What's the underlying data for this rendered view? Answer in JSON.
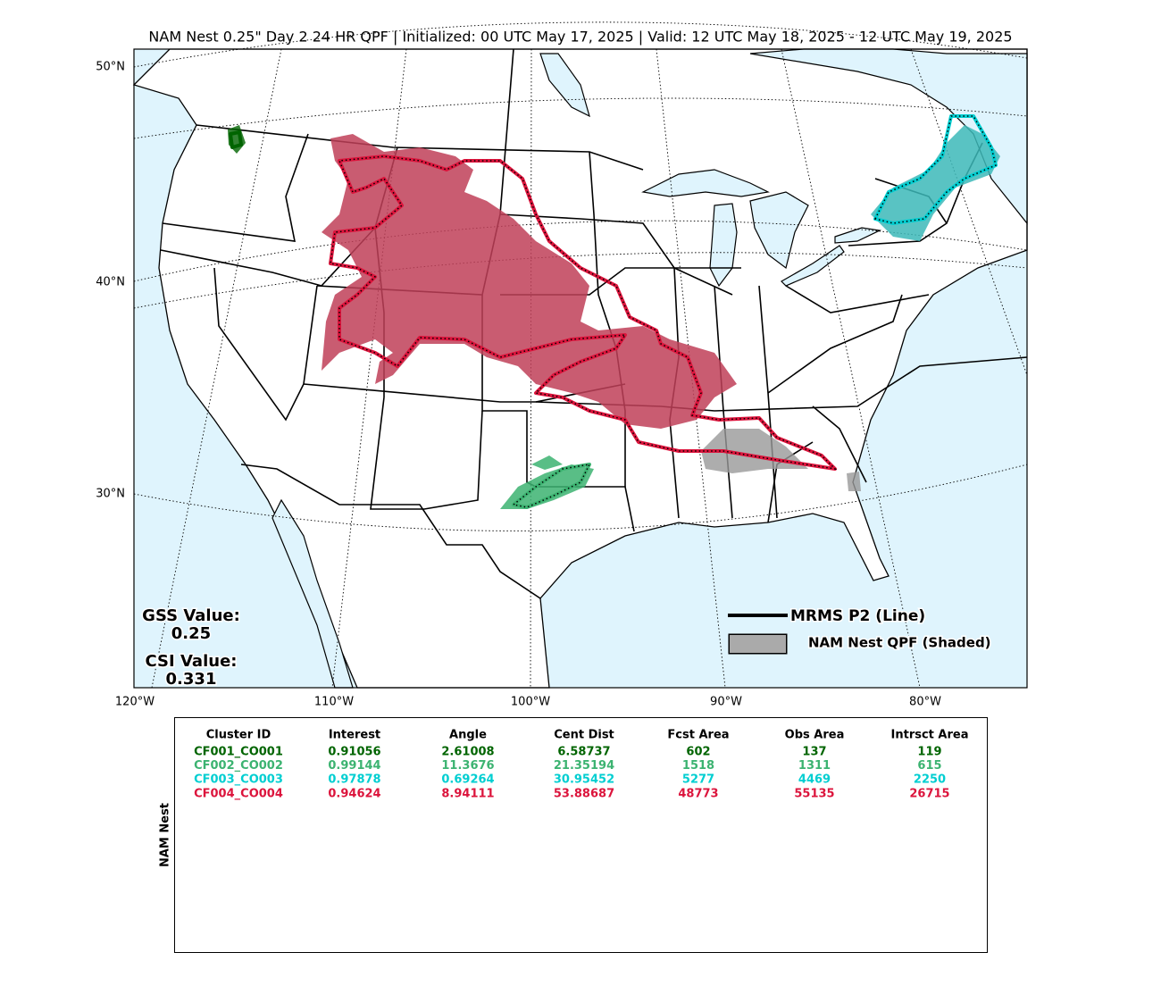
{
  "title": "NAM Nest 0.25\" Day 2 24 HR QPF | Initialized: 00 UTC May 17, 2025 | Valid: 12 UTC May 18, 2025 - 12 UTC May 19, 2025",
  "map": {
    "lat_labels": [
      "50°N",
      "40°N",
      "30°N"
    ],
    "lon_labels": [
      "120°W",
      "110°W",
      "100°W",
      "90°W",
      "80°W"
    ]
  },
  "legend": {
    "line": "MRMS P2 (Line)",
    "shaded": "NAM Nest QPF (Shaded)"
  },
  "scores": {
    "gss_label": "GSS Value:",
    "gss": "0.25",
    "csi_label": "CSI Value:",
    "csi": "0.331"
  },
  "table": {
    "side_label": "NAM Nest",
    "header": [
      "Cluster ID",
      "Interest",
      "Angle",
      "Cent Dist",
      "Fcst Area",
      "Obs Area",
      "Intrsct Area"
    ],
    "rows": [
      [
        "CF001_CO001",
        "0.91056",
        "2.61008",
        "6.58737",
        "602",
        "137",
        "119"
      ],
      [
        "CF002_CO002",
        "0.99144",
        "11.3676",
        "21.35194",
        "1518",
        "1311",
        "615"
      ],
      [
        "CF003_CO003",
        "0.97878",
        "0.69264",
        "30.95452",
        "5277",
        "4469",
        "2250"
      ],
      [
        "CF004_CO004",
        "0.94624",
        "8.94111",
        "53.88687",
        "48773",
        "55135",
        "26715"
      ]
    ],
    "row_colors": [
      "#006400",
      "#3cb371",
      "#00ced1",
      "#dc143c"
    ]
  }
}
